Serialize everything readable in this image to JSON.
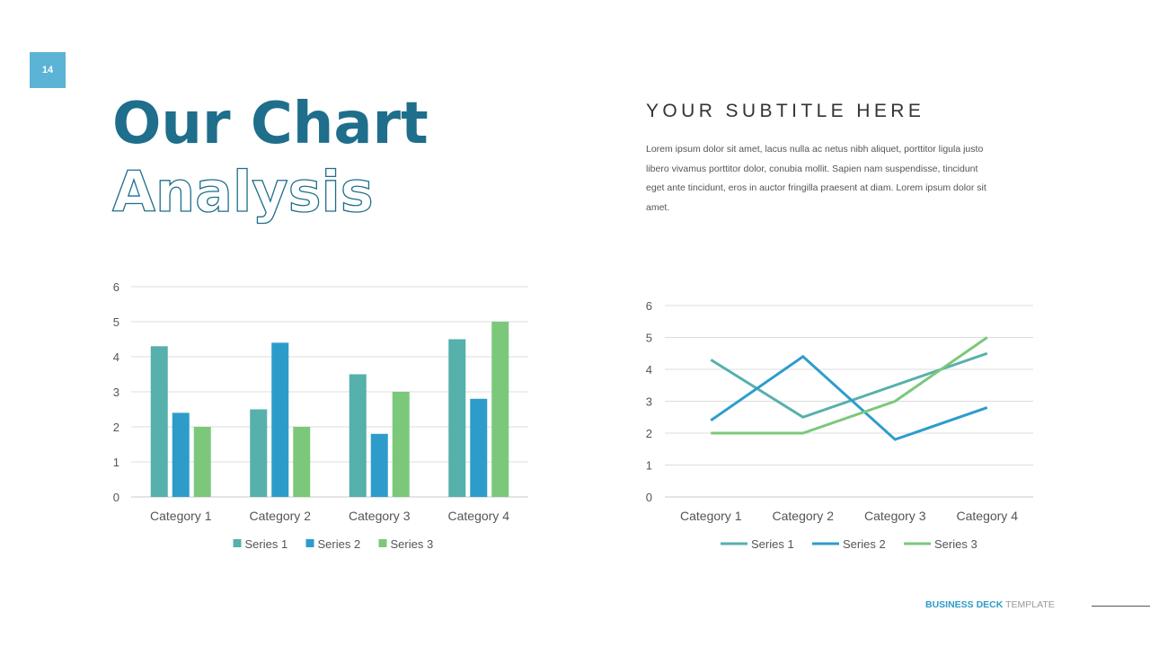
{
  "slide": {
    "page_number": "14",
    "title_line1": "Our Chart",
    "title_line2": "Analysis",
    "subtitle": "YOUR SUBTITLE HERE",
    "body": "Lorem ipsum dolor sit amet, lacus nulla ac netus nibh aliquet, porttitor ligula justo libero vivamus porttitor dolor, conubia mollit. Sapien nam suspendisse, tincidunt eget ante tincidunt, eros in auctor fringilla praesent at diam. Lorem ipsum dolor sit amet.",
    "footer_brand_bold": "BUSINESS DECK",
    "footer_brand_light": " TEMPLATE"
  },
  "colors": {
    "accent": "#1e6e8c",
    "badge": "#5bb3d6",
    "series1": "#56b0ab",
    "series2": "#2e9ccb",
    "series3": "#7bc87b"
  },
  "chart_data": [
    {
      "type": "bar",
      "categories": [
        "Category 1",
        "Category 2",
        "Category 3",
        "Category 4"
      ],
      "series": [
        {
          "name": "Series 1",
          "values": [
            4.3,
            2.5,
            3.5,
            4.5
          ]
        },
        {
          "name": "Series 2",
          "values": [
            2.4,
            4.4,
            1.8,
            2.8
          ]
        },
        {
          "name": "Series 3",
          "values": [
            2,
            2,
            3,
            5
          ]
        }
      ],
      "ylim": [
        0,
        6
      ],
      "yticks": [
        0,
        1,
        2,
        3,
        4,
        5,
        6
      ],
      "grid": true,
      "legend": "bottom"
    },
    {
      "type": "line",
      "categories": [
        "Category 1",
        "Category 2",
        "Category 3",
        "Category 4"
      ],
      "series": [
        {
          "name": "Series 1",
          "values": [
            4.3,
            2.5,
            3.5,
            4.5
          ]
        },
        {
          "name": "Series 2",
          "values": [
            2.4,
            4.4,
            1.8,
            2.8
          ]
        },
        {
          "name": "Series 3",
          "values": [
            2,
            2,
            3,
            5
          ]
        }
      ],
      "ylim": [
        0,
        6
      ],
      "yticks": [
        0,
        1,
        2,
        3,
        4,
        5,
        6
      ],
      "grid": true,
      "legend": "bottom"
    }
  ]
}
